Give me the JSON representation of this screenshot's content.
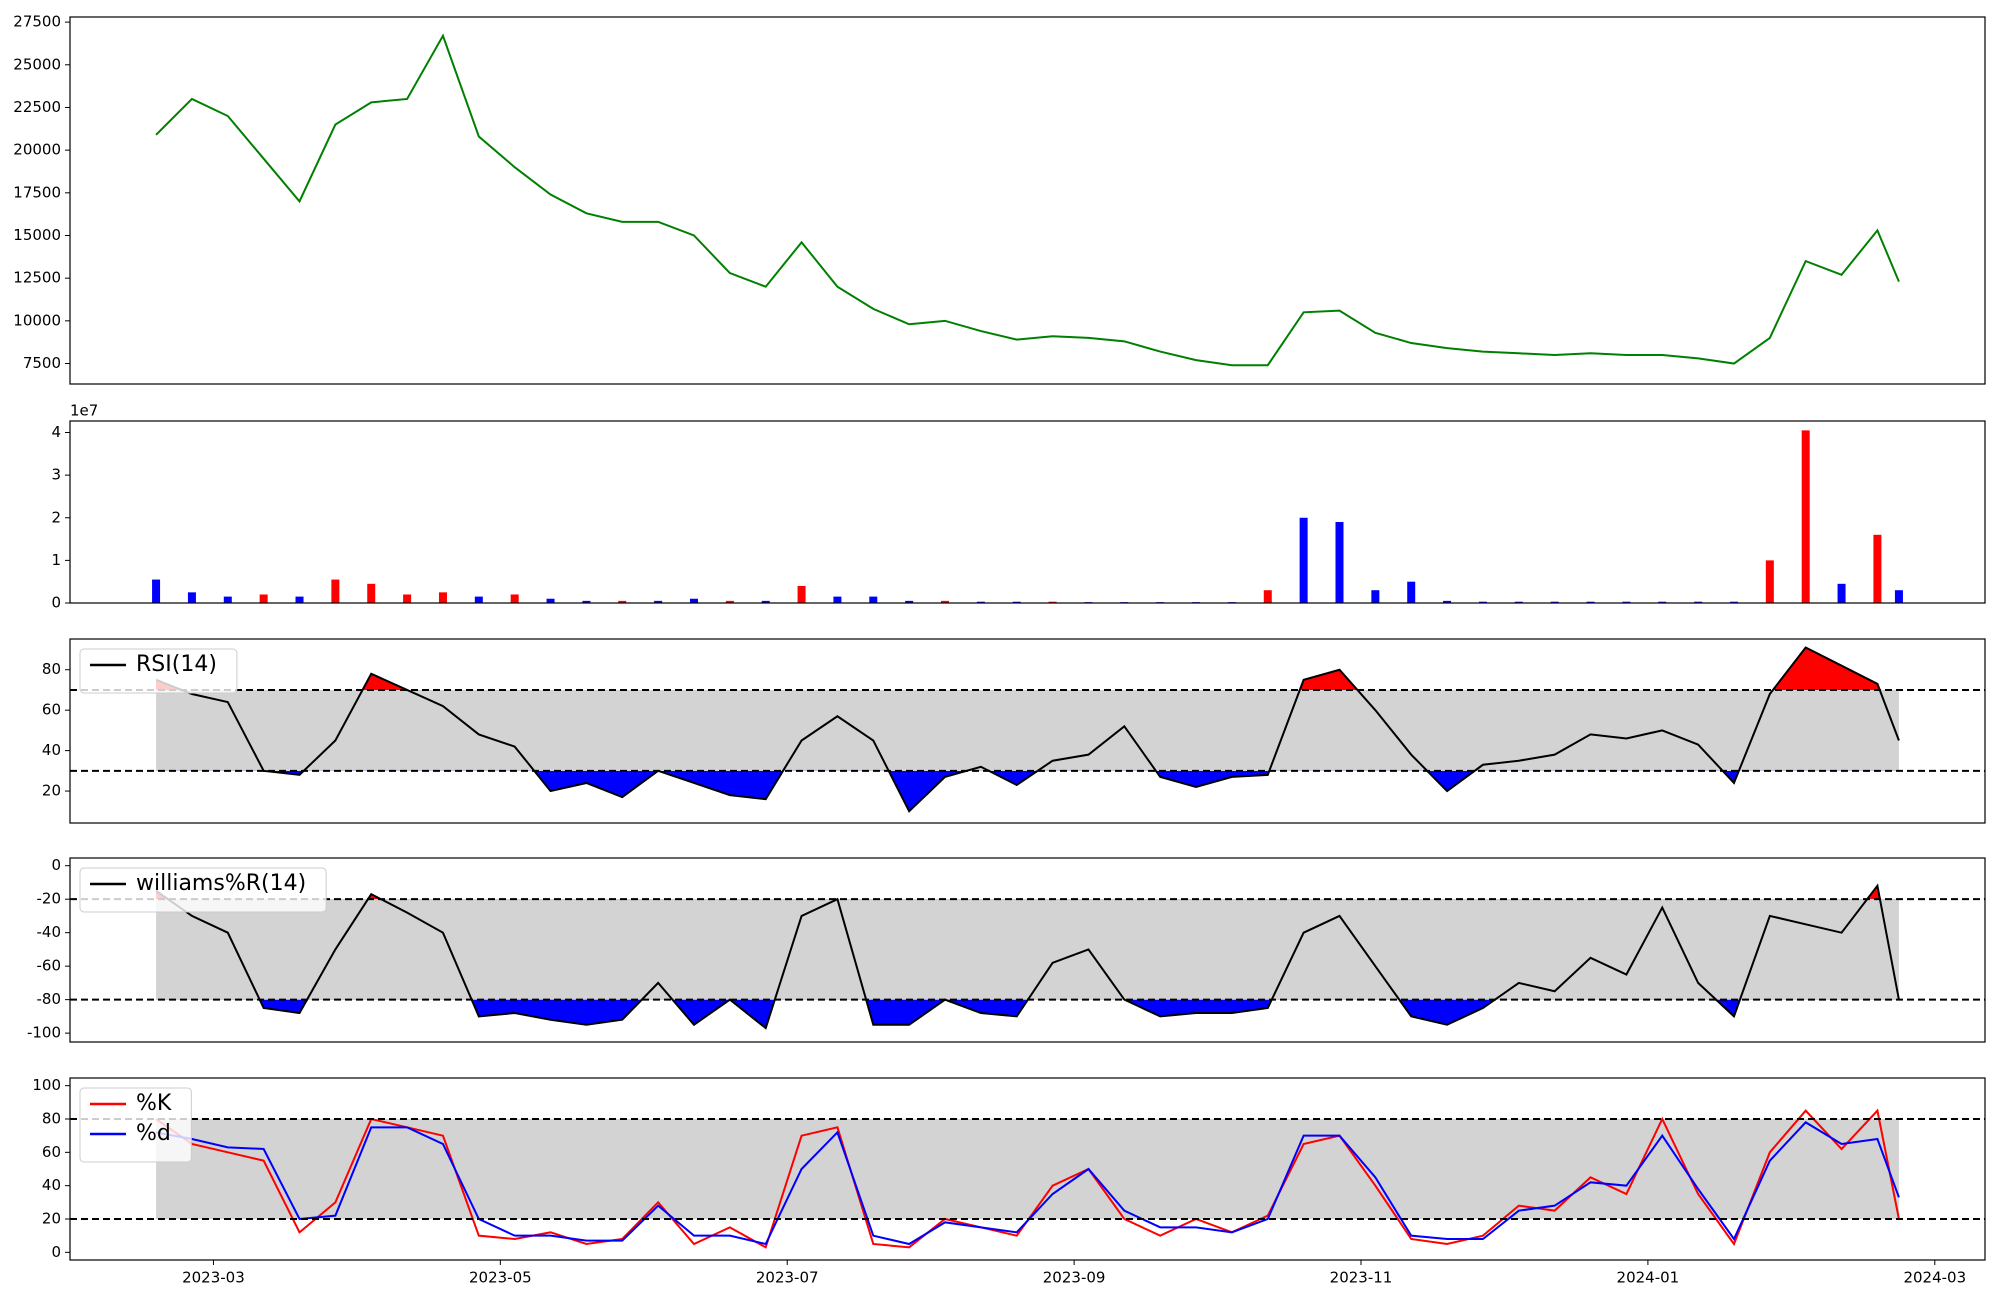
{
  "chart_data": [
    {
      "type": "line",
      "xlim": [
        2.0,
        15.35
      ],
      "ylim": [
        6300,
        27800
      ],
      "yticks": [
        7500,
        10000,
        12500,
        15000,
        17500,
        20000,
        22500,
        25000,
        27500
      ],
      "x": [
        2.6,
        2.85,
        3.1,
        3.35,
        3.6,
        3.85,
        4.1,
        4.35,
        4.6,
        4.85,
        5.1,
        5.35,
        5.6,
        5.85,
        6.1,
        6.35,
        6.6,
        6.85,
        7.1,
        7.35,
        7.6,
        7.85,
        8.1,
        8.35,
        8.6,
        8.85,
        9.1,
        9.35,
        9.6,
        9.85,
        10.1,
        10.35,
        10.6,
        10.85,
        11.1,
        11.35,
        11.6,
        11.85,
        12.1,
        12.35,
        12.6,
        12.85,
        13.1,
        13.35,
        13.6,
        13.85,
        14.1,
        14.35,
        14.6,
        14.75
      ],
      "series": [
        {
          "color": "green",
          "values": [
            20900,
            23000,
            22000,
            19500,
            17000,
            21500,
            22800,
            23000,
            26700,
            20800,
            19000,
            17400,
            16300,
            15800,
            15800,
            15000,
            12800,
            12000,
            14600,
            12000,
            10700,
            9800,
            10000,
            9400,
            8900,
            9100,
            9000,
            8800,
            8200,
            7700,
            7400,
            7400,
            10500,
            10600,
            9300,
            8700,
            8400,
            8200,
            8100,
            8000,
            8100,
            8000,
            8000,
            7800,
            7500,
            9000,
            13500,
            12700,
            15300,
            12300
          ]
        }
      ]
    },
    {
      "type": "bar",
      "xlim": [
        2.0,
        15.35
      ],
      "ylim": [
        0,
        4.27
      ],
      "yticks": [
        0,
        1,
        2,
        3,
        4
      ],
      "offset_label": "1e7",
      "x": [
        2.6,
        2.85,
        3.1,
        3.35,
        3.6,
        3.85,
        4.1,
        4.35,
        4.6,
        4.85,
        5.1,
        5.35,
        5.6,
        5.85,
        6.1,
        6.35,
        6.6,
        6.85,
        7.1,
        7.35,
        7.6,
        7.85,
        8.1,
        8.35,
        8.6,
        8.85,
        9.1,
        9.35,
        9.6,
        9.85,
        10.1,
        10.35,
        10.6,
        10.85,
        11.1,
        11.35,
        11.6,
        11.85,
        12.1,
        12.35,
        12.6,
        12.85,
        13.1,
        13.35,
        13.6,
        13.85,
        14.1,
        14.35,
        14.6,
        14.75
      ],
      "values": [
        0.55,
        0.25,
        0.15,
        0.2,
        0.15,
        0.55,
        0.45,
        0.2,
        0.25,
        0.15,
        0.2,
        0.1,
        0.05,
        0.05,
        0.05,
        0.1,
        0.05,
        0.05,
        0.4,
        0.15,
        0.15,
        0.05,
        0.05,
        0.03,
        0.03,
        0.03,
        0.02,
        0.02,
        0.02,
        0.02,
        0.02,
        0.3,
        2.0,
        1.9,
        0.3,
        0.5,
        0.05,
        0.03,
        0.03,
        0.03,
        0.03,
        0.03,
        0.03,
        0.03,
        0.03,
        1.0,
        4.05,
        0.45,
        1.6,
        0.3
      ],
      "colors": [
        "blue",
        "blue",
        "blue",
        "red",
        "blue",
        "red",
        "red",
        "red",
        "red",
        "blue",
        "red",
        "blue",
        "blue",
        "red",
        "blue",
        "blue",
        "red",
        "blue",
        "red",
        "blue",
        "blue",
        "blue",
        "red",
        "blue",
        "blue",
        "red",
        "blue",
        "blue",
        "blue",
        "blue",
        "blue",
        "red",
        "blue",
        "blue",
        "blue",
        "blue",
        "blue",
        "blue",
        "blue",
        "blue",
        "blue",
        "blue",
        "blue",
        "blue",
        "blue",
        "red",
        "red",
        "blue",
        "red",
        "blue"
      ]
    },
    {
      "type": "line",
      "xlim": [
        2.0,
        15.35
      ],
      "ylim": [
        4.2,
        95.2
      ],
      "yticks": [
        20,
        40,
        60,
        80
      ],
      "hlines": [
        30,
        70
      ],
      "band_color": "lightgray",
      "above_color": "red",
      "below_color": "blue",
      "x": [
        2.6,
        2.85,
        3.1,
        3.35,
        3.6,
        3.85,
        4.1,
        4.35,
        4.6,
        4.85,
        5.1,
        5.35,
        5.6,
        5.85,
        6.1,
        6.35,
        6.6,
        6.85,
        7.1,
        7.35,
        7.6,
        7.85,
        8.1,
        8.35,
        8.6,
        8.85,
        9.1,
        9.35,
        9.6,
        9.85,
        10.1,
        10.35,
        10.6,
        10.85,
        11.1,
        11.35,
        11.6,
        11.85,
        12.1,
        12.35,
        12.6,
        12.85,
        13.1,
        13.35,
        13.6,
        13.85,
        14.1,
        14.35,
        14.6,
        14.75
      ],
      "series": [
        {
          "name": "RSI(14)",
          "color": "black",
          "values": [
            75,
            68,
            64,
            30,
            28,
            45,
            78,
            70,
            62,
            48,
            42,
            20,
            24,
            17,
            30,
            24,
            18,
            16,
            45,
            57,
            45,
            10,
            27,
            32,
            23,
            35,
            38,
            52,
            27,
            22,
            27,
            28,
            75,
            80,
            60,
            38,
            20,
            33,
            35,
            38,
            48,
            46,
            50,
            43,
            24,
            68,
            91,
            82,
            73,
            45
          ]
        }
      ]
    },
    {
      "type": "line",
      "xlim": [
        2.0,
        15.35
      ],
      "ylim": [
        -105.3,
        4.6
      ],
      "yticks": [
        -100,
        -80,
        -60,
        -40,
        -20,
        0
      ],
      "hlines": [
        -80,
        -20
      ],
      "band_color": "lightgray",
      "above_color": "red",
      "below_color": "blue",
      "x": [
        2.6,
        2.85,
        3.1,
        3.35,
        3.6,
        3.85,
        4.1,
        4.35,
        4.6,
        4.85,
        5.1,
        5.35,
        5.6,
        5.85,
        6.1,
        6.35,
        6.6,
        6.85,
        7.1,
        7.35,
        7.6,
        7.85,
        8.1,
        8.35,
        8.6,
        8.85,
        9.1,
        9.35,
        9.6,
        9.85,
        10.1,
        10.35,
        10.6,
        10.85,
        11.1,
        11.35,
        11.6,
        11.85,
        12.1,
        12.35,
        12.6,
        12.85,
        13.1,
        13.35,
        13.6,
        13.85,
        14.1,
        14.35,
        14.6,
        14.75
      ],
      "series": [
        {
          "name": "williams%R(14)",
          "color": "black",
          "values": [
            -15,
            -30,
            -40,
            -85,
            -88,
            -50,
            -17,
            -28,
            -40,
            -90,
            -88,
            -92,
            -95,
            -92,
            -70,
            -95,
            -80,
            -97,
            -30,
            -20,
            -95,
            -95,
            -80,
            -88,
            -90,
            -58,
            -50,
            -80,
            -90,
            -88,
            -88,
            -85,
            -40,
            -30,
            -60,
            -90,
            -95,
            -85,
            -70,
            -75,
            -55,
            -65,
            -25,
            -70,
            -90,
            -30,
            -35,
            -40,
            -12,
            -80
          ]
        }
      ]
    },
    {
      "type": "line",
      "xlim": [
        2.0,
        15.35
      ],
      "ylim": [
        -4.6,
        104.6
      ],
      "yticks": [
        0,
        20,
        40,
        60,
        80,
        100
      ],
      "hlines": [
        20,
        80
      ],
      "band_color": "lightgray",
      "xticks": [
        {
          "value": 3,
          "label": "2023-03"
        },
        {
          "value": 5,
          "label": "2023-05"
        },
        {
          "value": 7,
          "label": "2023-07"
        },
        {
          "value": 9,
          "label": "2023-09"
        },
        {
          "value": 11,
          "label": "2023-11"
        },
        {
          "value": 13,
          "label": "2024-01"
        },
        {
          "value": 15,
          "label": "2024-03"
        }
      ],
      "x": [
        2.6,
        2.85,
        3.1,
        3.35,
        3.6,
        3.85,
        4.1,
        4.35,
        4.6,
        4.85,
        5.1,
        5.35,
        5.6,
        5.85,
        6.1,
        6.35,
        6.6,
        6.85,
        7.1,
        7.35,
        7.6,
        7.85,
        8.1,
        8.35,
        8.6,
        8.85,
        9.1,
        9.35,
        9.6,
        9.85,
        10.1,
        10.35,
        10.6,
        10.85,
        11.1,
        11.35,
        11.6,
        11.85,
        12.1,
        12.35,
        12.6,
        12.85,
        13.1,
        13.35,
        13.6,
        13.85,
        14.1,
        14.35,
        14.6,
        14.75
      ],
      "series": [
        {
          "name": "%K",
          "color": "red",
          "values": [
            80,
            65,
            60,
            55,
            12,
            30,
            80,
            75,
            70,
            10,
            8,
            12,
            5,
            8,
            30,
            5,
            15,
            3,
            70,
            75,
            5,
            3,
            20,
            15,
            10,
            40,
            50,
            20,
            10,
            20,
            12,
            22,
            65,
            70,
            40,
            8,
            5,
            10,
            28,
            25,
            45,
            35,
            80,
            35,
            5,
            60,
            85,
            62,
            85,
            20
          ]
        },
        {
          "name": "%d",
          "color": "blue",
          "values": [
            72,
            68,
            63,
            62,
            20,
            22,
            75,
            75,
            65,
            20,
            10,
            10,
            7,
            7,
            28,
            10,
            10,
            5,
            50,
            72,
            10,
            5,
            18,
            15,
            12,
            35,
            50,
            25,
            15,
            15,
            12,
            20,
            70,
            70,
            45,
            10,
            8,
            8,
            25,
            28,
            42,
            40,
            70,
            38,
            8,
            55,
            78,
            65,
            68,
            33
          ]
        }
      ]
    }
  ]
}
